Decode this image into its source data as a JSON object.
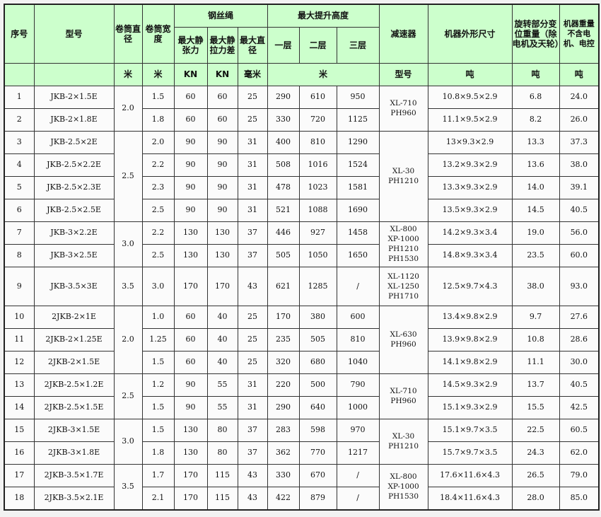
{
  "header": {
    "seq": "序号",
    "model": "型号",
    "drum_diameter": "卷筒直径",
    "drum_width": "卷筒宽度",
    "wire_rope": "钢丝绳",
    "max_static_tension": "最大静张力",
    "max_static_tension_diff": "最大静拉力差",
    "max_diameter": "最大直径",
    "max_lift_height": "最大提升高度",
    "layer1": "一层",
    "layer2": "二层",
    "layer3": "三层",
    "reducer": "减速器",
    "dimensions": "机器外形尺寸",
    "rotating_weight": "旋转部分变位重量（除电机及天轮）",
    "machine_weight": "机器重量不含电机、电控"
  },
  "units": {
    "drum_diameter": "米",
    "drum_width": "米",
    "tension": "KN",
    "tension_diff": "KN",
    "diameter": "毫米",
    "lift_height": "米",
    "reducer": "型号",
    "dimensions": "吨",
    "rotating_weight": "吨",
    "machine_weight": "吨"
  },
  "rows": [
    {
      "seq": "1",
      "model": "JKB-2×1.5E",
      "width": "1.5",
      "tension": "60",
      "diff": "60",
      "dia": "25",
      "l1": "290",
      "l2": "610",
      "l3": "950",
      "dims": "10.8×9.5×2.9",
      "rot": "6.8",
      "weight": "24.0"
    },
    {
      "seq": "2",
      "model": "JKB-2×1.8E",
      "width": "1.8",
      "tension": "60",
      "diff": "60",
      "dia": "25",
      "l1": "330",
      "l2": "720",
      "l3": "1125",
      "dims": "11.1×9.5×2.9",
      "rot": "8.2",
      "weight": "26.0"
    },
    {
      "seq": "3",
      "model": "JKB-2.5×2E",
      "width": "2.0",
      "tension": "90",
      "diff": "90",
      "dia": "31",
      "l1": "400",
      "l2": "810",
      "l3": "1290",
      "dims": "13×9.3×2.9",
      "rot": "13.3",
      "weight": "37.3"
    },
    {
      "seq": "4",
      "model": "JKB-2.5×2.2E",
      "width": "2.2",
      "tension": "90",
      "diff": "90",
      "dia": "31",
      "l1": "508",
      "l2": "1016",
      "l3": "1524",
      "dims": "13.2×9.3×2.9",
      "rot": "13.6",
      "weight": "38.0"
    },
    {
      "seq": "5",
      "model": "JKB-2.5×2.3E",
      "width": "2.3",
      "tension": "90",
      "diff": "90",
      "dia": "31",
      "l1": "478",
      "l2": "1023",
      "l3": "1581",
      "dims": "13.3×9.3×2.9",
      "rot": "14.0",
      "weight": "39.1"
    },
    {
      "seq": "6",
      "model": "JKB-2.5×2.5E",
      "width": "2.5",
      "tension": "90",
      "diff": "90",
      "dia": "31",
      "l1": "521",
      "l2": "1088",
      "l3": "1690",
      "dims": "13.5×9.3×2.9",
      "rot": "14.5",
      "weight": "40.5"
    },
    {
      "seq": "7",
      "model": "JKB-3×2.2E",
      "width": "2.2",
      "tension": "130",
      "diff": "130",
      "dia": "37",
      "l1": "446",
      "l2": "927",
      "l3": "1458",
      "dims": "14.2×9.3×3.4",
      "rot": "19.0",
      "weight": "56.0"
    },
    {
      "seq": "8",
      "model": "JKB-3×2.5E",
      "width": "2.5",
      "tension": "130",
      "diff": "130",
      "dia": "37",
      "l1": "505",
      "l2": "1050",
      "l3": "1650",
      "dims": "14.8×9.3×3.4",
      "rot": "23.5",
      "weight": "60.0"
    },
    {
      "seq": "9",
      "model": "JKB-3.5×3E",
      "width": "3.0",
      "tension": "170",
      "diff": "170",
      "dia": "43",
      "l1": "621",
      "l2": "1285",
      "l3": "/",
      "dims": "12.5×9.7×4.3",
      "rot": "38.0",
      "weight": "93.0"
    },
    {
      "seq": "10",
      "model": "2JKB-2×1E",
      "width": "1.0",
      "tension": "60",
      "diff": "40",
      "dia": "25",
      "l1": "170",
      "l2": "380",
      "l3": "600",
      "dims": "13.4×9.8×2.9",
      "rot": "9.7",
      "weight": "27.6"
    },
    {
      "seq": "11",
      "model": "2JKB-2×1.25E",
      "width": "1.25",
      "tension": "60",
      "diff": "40",
      "dia": "25",
      "l1": "235",
      "l2": "505",
      "l3": "810",
      "dims": "13.9×9.8×2.9",
      "rot": "10.8",
      "weight": "28.6"
    },
    {
      "seq": "12",
      "model": "2JKB-2×1.5E",
      "width": "1.5",
      "tension": "60",
      "diff": "40",
      "dia": "25",
      "l1": "320",
      "l2": "680",
      "l3": "1040",
      "dims": "14.1×9.8×2.9",
      "rot": "11.1",
      "weight": "30.0"
    },
    {
      "seq": "13",
      "model": "2JKB-2.5×1.2E",
      "width": "1.2",
      "tension": "90",
      "diff": "55",
      "dia": "31",
      "l1": "220",
      "l2": "500",
      "l3": "790",
      "dims": "14.5×9.3×2.9",
      "rot": "13.7",
      "weight": "40.5"
    },
    {
      "seq": "14",
      "model": "2JKB-2.5×1.5E",
      "width": "1.5",
      "tension": "90",
      "diff": "55",
      "dia": "31",
      "l1": "290",
      "l2": "640",
      "l3": "1000",
      "dims": "15.1×9.3×2.9",
      "rot": "15.5",
      "weight": "42.5"
    },
    {
      "seq": "15",
      "model": "2JKB-3×1.5E",
      "width": "1.5",
      "tension": "130",
      "diff": "80",
      "dia": "37",
      "l1": "283",
      "l2": "598",
      "l3": "970",
      "dims": "15.1×9.7×3.5",
      "rot": "22.5",
      "weight": "60.5"
    },
    {
      "seq": "16",
      "model": "2JKB-3×1.8E",
      "width": "1.8",
      "tension": "130",
      "diff": "80",
      "dia": "37",
      "l1": "362",
      "l2": "770",
      "l3": "1217",
      "dims": "15.7×9.7×3.5",
      "rot": "24.3",
      "weight": "62.0"
    },
    {
      "seq": "17",
      "model": "2JKB-3.5×1.7E",
      "width": "1.7",
      "tension": "170",
      "diff": "115",
      "dia": "43",
      "l1": "330",
      "l2": "670",
      "l3": "/",
      "dims": "17.6×11.6×4.3",
      "rot": "26.5",
      "weight": "79.0"
    },
    {
      "seq": "18",
      "model": "2JKB-3.5×2.1E",
      "width": "2.1",
      "tension": "170",
      "diff": "115",
      "dia": "43",
      "l1": "422",
      "l2": "879",
      "l3": "/",
      "dims": "18.4×11.6×4.3",
      "rot": "28.0",
      "weight": "85.0"
    }
  ],
  "drum_diameter_groups": [
    {
      "value": "2.0",
      "span": 2
    },
    {
      "value": "2.5",
      "span": 4
    },
    {
      "value": "3.0",
      "span": 2
    },
    {
      "value": "3.5",
      "span": 1
    },
    {
      "value": "2.0",
      "span": 3
    },
    {
      "value": "2.5",
      "span": 2
    },
    {
      "value": "3.0",
      "span": 2
    },
    {
      "value": "3.5",
      "span": 2
    }
  ],
  "reducer_groups": [
    {
      "lines": [
        "XL-710",
        "PH960"
      ],
      "span": 2
    },
    {
      "lines": [
        "XL-30",
        "PH1210"
      ],
      "span": 4
    },
    {
      "lines": [
        "XL-800",
        "XP-1000",
        "PH1210",
        "PH1530"
      ],
      "span": 2
    },
    {
      "lines": [
        "XL-1120",
        "XL-1250",
        "PH1710"
      ],
      "span": 1
    },
    {
      "lines": [
        "XL-630",
        "PH960"
      ],
      "span": 3
    },
    {
      "lines": [
        "XL-710",
        "PH960"
      ],
      "span": 2
    },
    {
      "lines": [
        "XL-30",
        "PH1210"
      ],
      "span": 2
    },
    {
      "lines": [
        "XL-800",
        "XP-1000",
        "PH1530"
      ],
      "span": 2
    }
  ],
  "colors": {
    "header_bg": "#ccffcc",
    "cell_bg": "#fbfbfb",
    "border": "#333333"
  }
}
